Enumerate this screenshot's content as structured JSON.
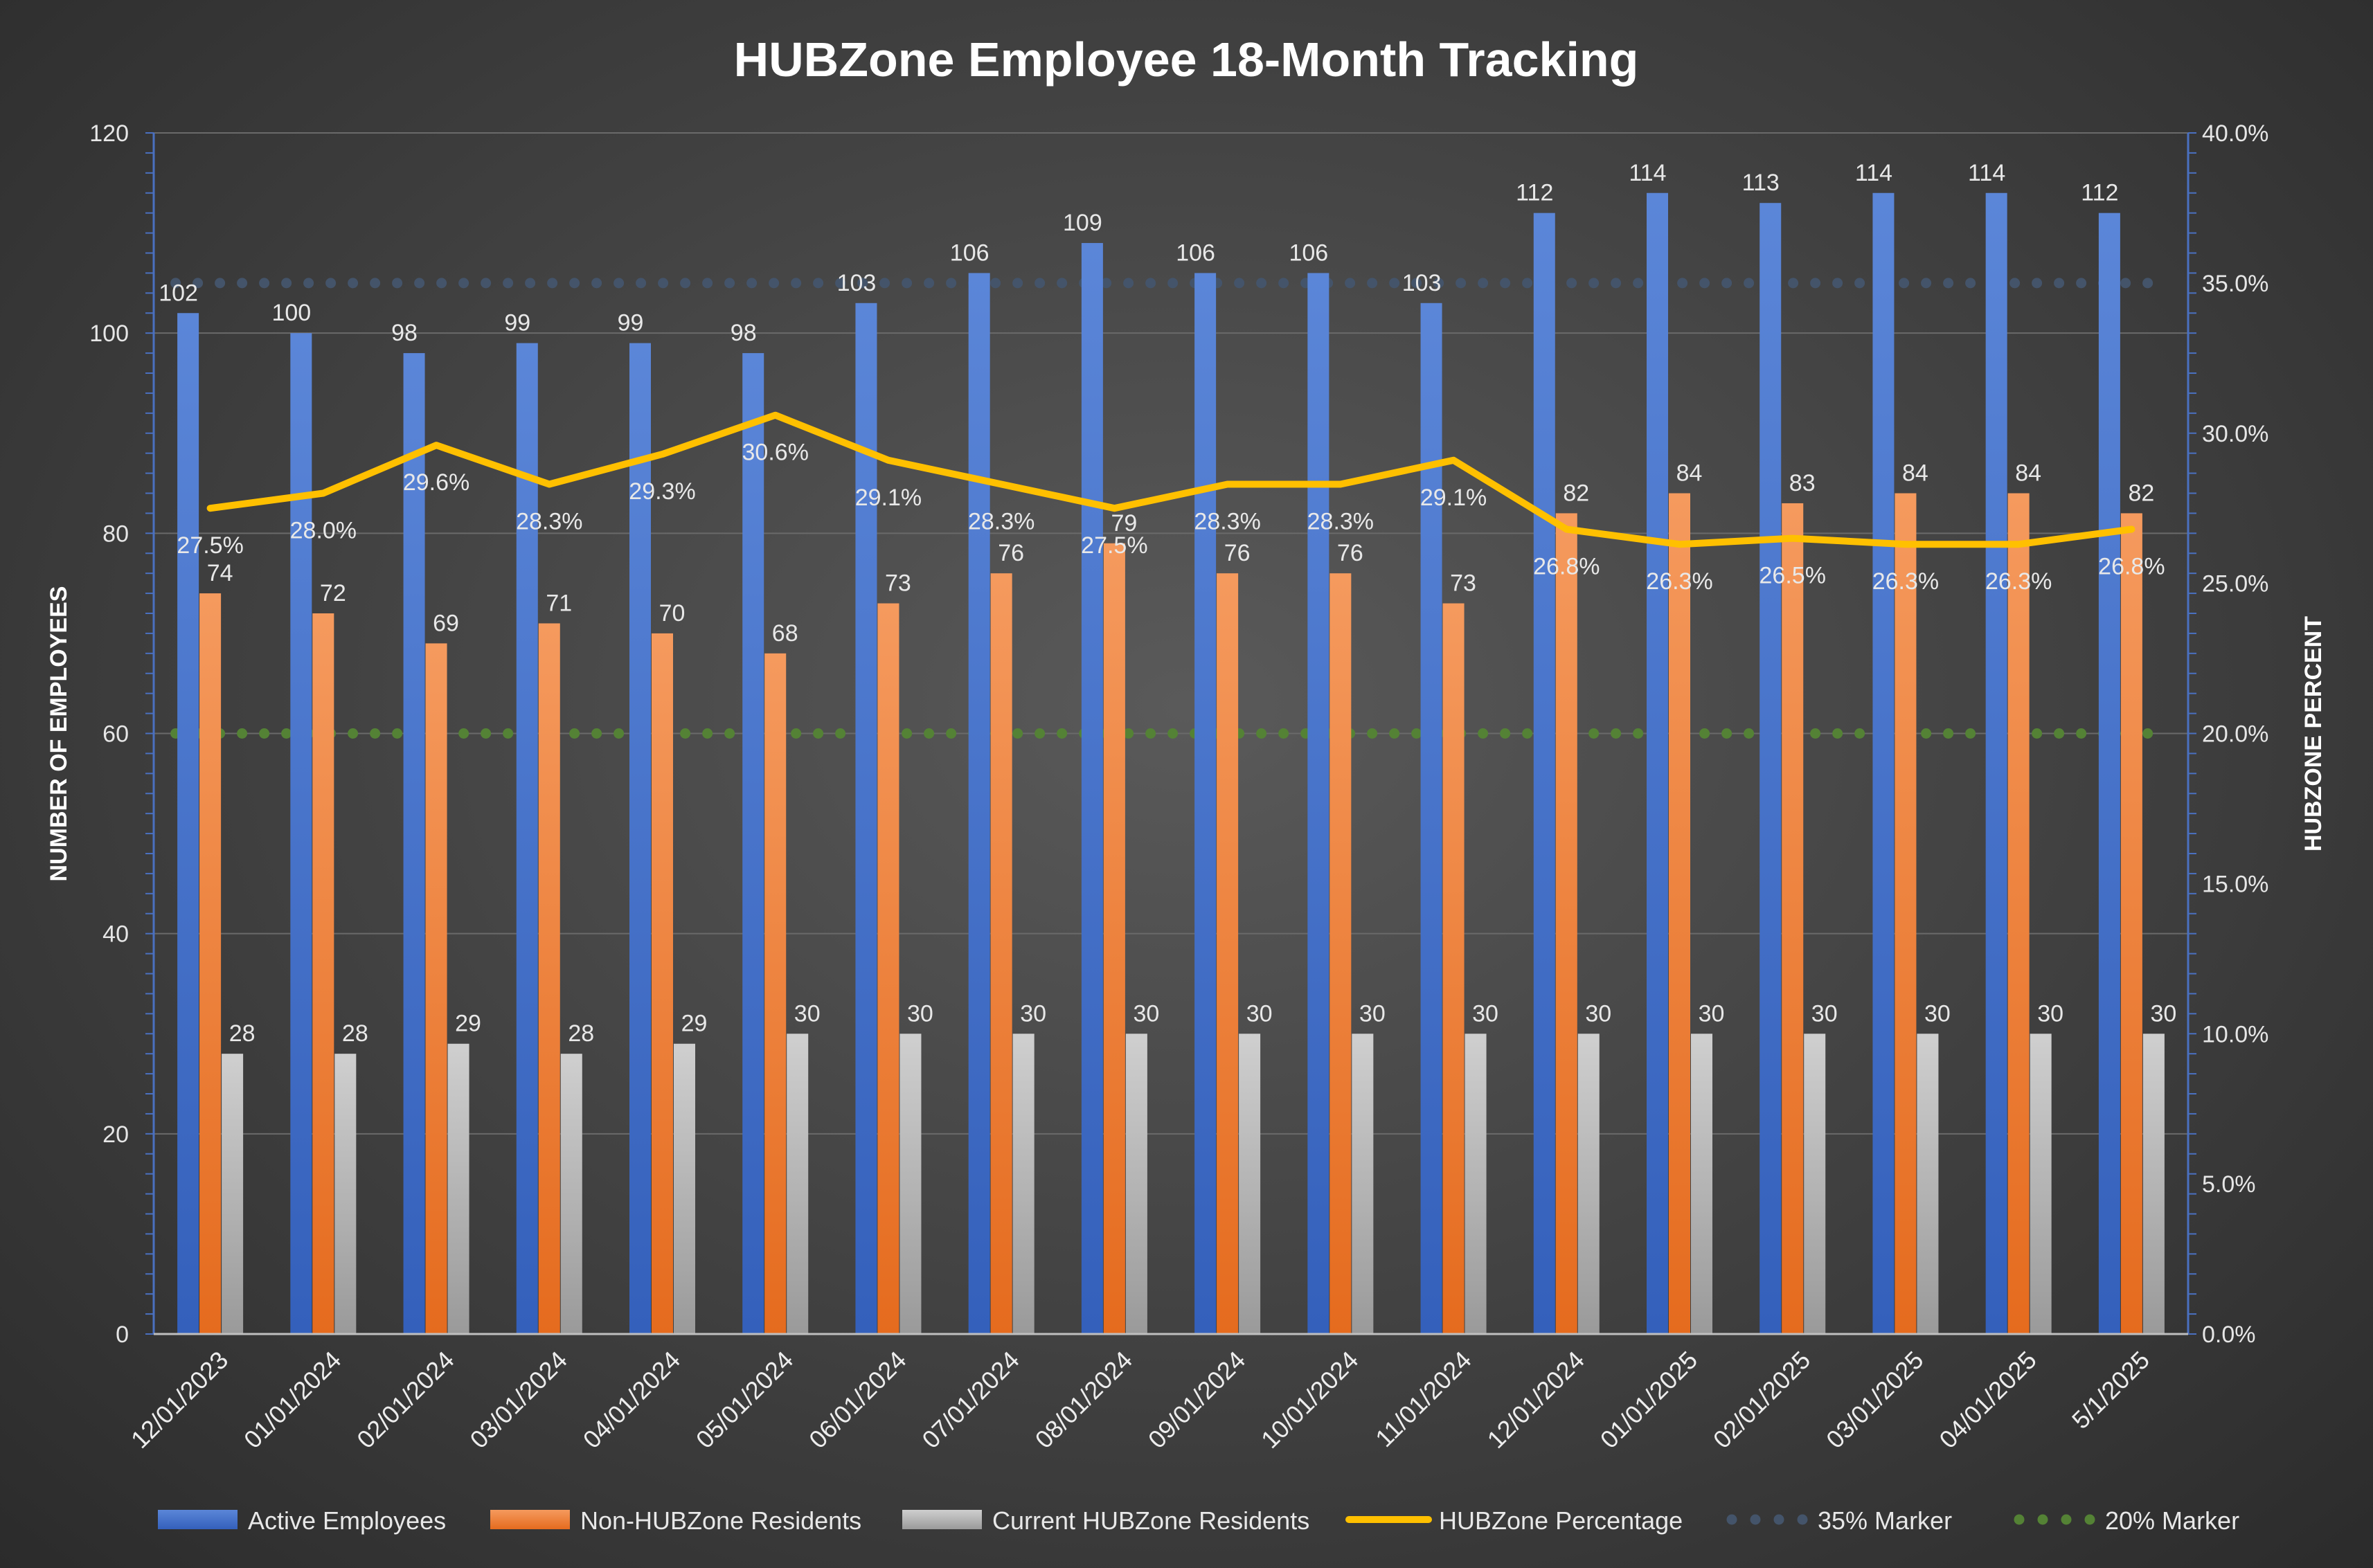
{
  "chart_data": {
    "type": "bar",
    "title": "HUBZone Employee 18-Month Tracking",
    "ylabel": "NUMBER OF EMPLOYEES",
    "y2label": "HUBZONE PERCENT",
    "ylim": [
      0,
      120
    ],
    "y2lim": [
      0,
      40
    ],
    "y_ticks": [
      "0",
      "20",
      "40",
      "60",
      "80",
      "100",
      "120"
    ],
    "y2_ticks": [
      "0.0%",
      "5.0%",
      "10.0%",
      "15.0%",
      "20.0%",
      "25.0%",
      "30.0%",
      "35.0%",
      "40.0%"
    ],
    "grid": true,
    "legend_position": "bottom",
    "categories": [
      "12/01/2023",
      "01/01/2024",
      "02/01/2024",
      "03/01/2024",
      "04/01/2024",
      "05/01/2024",
      "06/01/2024",
      "07/01/2024",
      "08/01/2024",
      "09/01/2024",
      "10/01/2024",
      "11/01/2024",
      "12/01/2024",
      "01/01/2025",
      "02/01/2025",
      "03/01/2025",
      "04/01/2025",
      "5/1/2025"
    ],
    "series": [
      {
        "name": "Active Employees",
        "type": "bar",
        "axis": "left",
        "color": "#4472C4",
        "values": [
          102,
          100,
          98,
          99,
          99,
          98,
          103,
          106,
          109,
          106,
          106,
          103,
          112,
          114,
          113,
          114,
          114,
          112
        ]
      },
      {
        "name": "Non-HUBZone Residents",
        "type": "bar",
        "axis": "left",
        "color": "#ED7D31",
        "values": [
          74,
          72,
          69,
          71,
          70,
          68,
          73,
          76,
          79,
          76,
          76,
          73,
          82,
          84,
          83,
          84,
          84,
          82
        ]
      },
      {
        "name": "Current HUBZone Residents",
        "type": "bar",
        "axis": "left",
        "color": "#A5A5A5",
        "values": [
          28,
          28,
          29,
          28,
          29,
          30,
          30,
          30,
          30,
          30,
          30,
          30,
          30,
          30,
          30,
          30,
          30,
          30
        ]
      },
      {
        "name": "HUBZone Percentage",
        "type": "line",
        "axis": "right",
        "color": "#FFC000",
        "values": [
          27.5,
          28.0,
          29.6,
          28.3,
          29.3,
          30.6,
          29.1,
          28.3,
          27.5,
          28.3,
          28.3,
          29.1,
          26.8,
          26.3,
          26.5,
          26.3,
          26.3,
          26.8
        ],
        "labels": [
          "27.5%",
          "28.0%",
          "29.6%",
          "28.3%",
          "29.3%",
          "30.6%",
          "29.1%",
          "28.3%",
          "27.5%",
          "28.3%",
          "28.3%",
          "29.1%",
          "26.8%",
          "26.3%",
          "26.5%",
          "26.3%",
          "26.3%",
          "26.8%"
        ]
      },
      {
        "name": "35% Marker",
        "type": "dotted-line",
        "axis": "right",
        "color": "#44546A",
        "value": 35
      },
      {
        "name": "20% Marker",
        "type": "dotted-line",
        "axis": "right",
        "color": "#548235",
        "value": 20
      }
    ]
  }
}
